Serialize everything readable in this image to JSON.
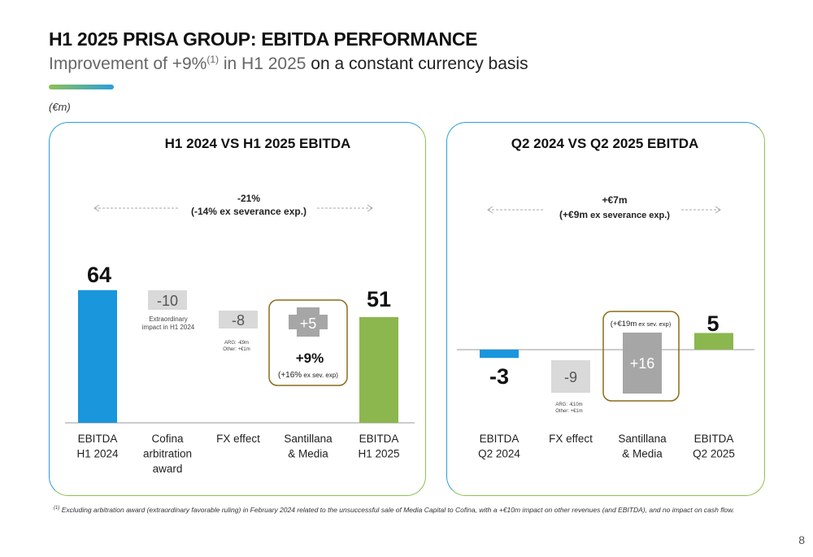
{
  "header": {
    "title": "H1 2025 PRISA GROUP: EBITDA PERFORMANCE",
    "subtitle_grey": "Improvement of +9%",
    "subtitle_sup": "(1)",
    "subtitle_grey2": " in H1 2025",
    "subtitle_rest": " on a constant currency basis",
    "unit": "(€m)"
  },
  "colors": {
    "blue": "#1a96dc",
    "green": "#8bb74e",
    "grey_box": "#d9d9d9",
    "grey_bar": "#a6a6a6",
    "gold_border": "#8a6d1a"
  },
  "chart_data": [
    {
      "type": "bar",
      "title": "H1 2024 VS H1 2025 EBITDA",
      "categories": [
        "EBITDA H1 2024",
        "Cofina arbitration award",
        "FX effect",
        "Santillana & Media",
        "EBITDA H1 2025"
      ],
      "category_lines": [
        [
          "EBITDA",
          "H1 2024"
        ],
        [
          "Cofina",
          "arbitration",
          "award"
        ],
        [
          "FX effect"
        ],
        [
          "Santillana",
          "& Media"
        ],
        [
          "EBITDA",
          "H1 2025"
        ]
      ],
      "values": [
        64,
        -10,
        -8,
        5,
        51
      ],
      "value_labels": [
        "64",
        "-10",
        "-8",
        "+5",
        "51"
      ],
      "change_line1": "-21%",
      "change_line2": "(-14% ex severance exp.)",
      "notes": [
        {
          "lines": [
            "Extraordinary",
            "impact in H1 2024"
          ]
        },
        {
          "lines": [
            "ARG: -€9m",
            "Other: +€1m"
          ]
        }
      ],
      "highlight": {
        "main": "+9%",
        "sub_prefix": "(+16%",
        "sub_small": " ex sev. exp)"
      }
    },
    {
      "type": "bar",
      "title": "Q2 2024 VS Q2 2025 EBITDA",
      "categories": [
        "EBITDA Q2 2024",
        "FX effect",
        "Santillana & Media",
        "EBITDA Q2 2025"
      ],
      "category_lines": [
        [
          "EBITDA",
          "Q2 2024"
        ],
        [
          "FX effect"
        ],
        [
          "Santillana",
          "& Media"
        ],
        [
          "EBITDA",
          "Q2 2025"
        ]
      ],
      "values": [
        -3,
        -9,
        16,
        5
      ],
      "value_labels": [
        "-3",
        "-9",
        "+16",
        "5"
      ],
      "change_line1": "+€7m",
      "change_line2a": "(+€9m",
      "change_line2b": " ex severance exp.)",
      "notes": [
        {
          "lines": [
            "ARG: -€10m",
            "Other: +€1m"
          ]
        }
      ],
      "highlight": {
        "prefix": "(+€19m",
        "small": " ex sev. exp)"
      }
    }
  ],
  "footnote": {
    "sup": "(1)",
    "text": " Excluding arbitration award (extraordinary favorable ruling) in February 2024 related to the unsuccessful sale of Media Capital to Cofina, with a +€10m impact on other revenues (and EBITDA), and no impact on cash flow."
  },
  "page_number": "8"
}
